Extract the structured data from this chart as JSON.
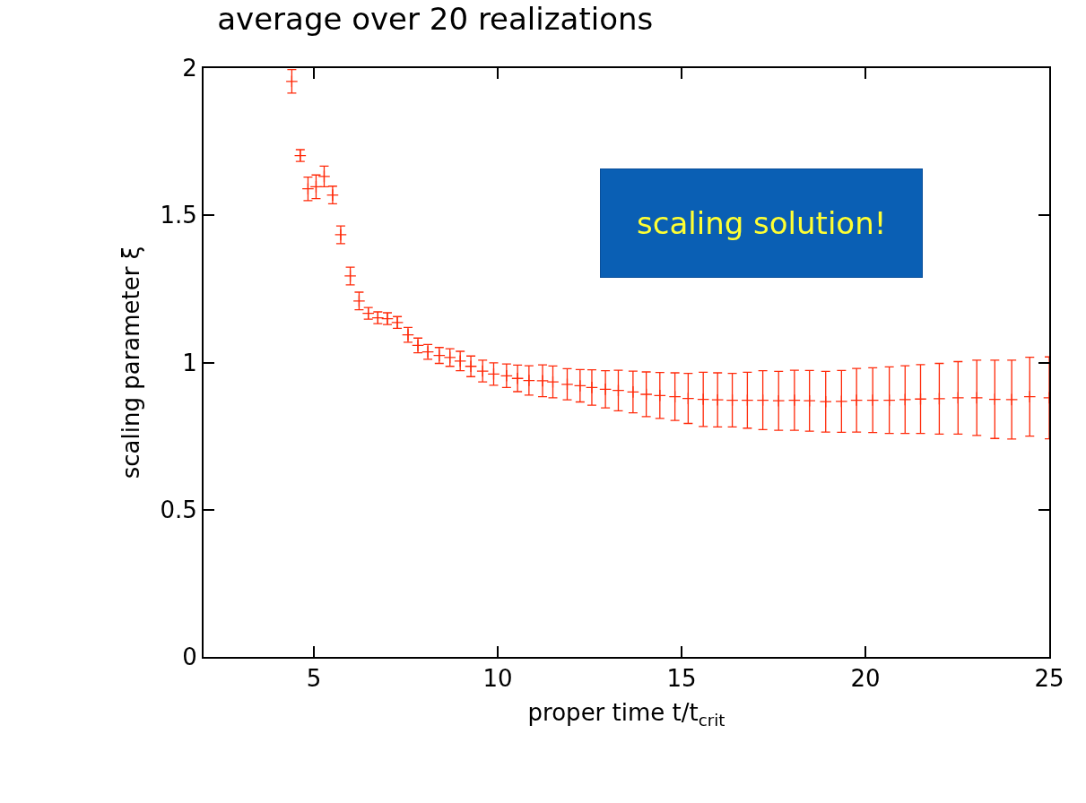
{
  "chart_data": {
    "type": "scatter",
    "title": "average over 20 realizations",
    "xlabel": "proper time t/t$_{crit}$",
    "ylabel": "scaling parameter ξ",
    "annotations": [
      "scaling solution!"
    ],
    "x": [
      4.4,
      4.63,
      4.84,
      5.06,
      5.28,
      5.51,
      5.73,
      5.99,
      6.23,
      6.48,
      6.74,
      7.0,
      7.27,
      7.56,
      7.83,
      8.1,
      8.41,
      8.7,
      8.98,
      9.27,
      9.59,
      9.89,
      10.24,
      10.54,
      10.85,
      11.22,
      11.5,
      11.89,
      12.24,
      12.56,
      12.93,
      13.28,
      13.68,
      14.04,
      14.41,
      14.82,
      15.18,
      15.59,
      15.98,
      16.38,
      16.79,
      17.21,
      17.64,
      18.07,
      18.48,
      18.92,
      19.35,
      19.76,
      20.2,
      20.65,
      21.08,
      21.5,
      22.01,
      22.52,
      23.03,
      23.52,
      23.98,
      24.47,
      25.0
    ],
    "series": [
      {
        "color": "#ff2a0a",
        "values": [
          1.955,
          1.703,
          1.59,
          1.597,
          1.632,
          1.569,
          1.434,
          1.294,
          1.209,
          1.167,
          1.152,
          1.149,
          1.136,
          1.094,
          1.058,
          1.036,
          1.024,
          1.017,
          1.005,
          0.987,
          0.971,
          0.961,
          0.955,
          0.946,
          0.939,
          0.938,
          0.934,
          0.926,
          0.921,
          0.915,
          0.909,
          0.905,
          0.9,
          0.892,
          0.888,
          0.884,
          0.878,
          0.875,
          0.873,
          0.872,
          0.872,
          0.872,
          0.87,
          0.872,
          0.87,
          0.867,
          0.868,
          0.872,
          0.872,
          0.872,
          0.874,
          0.876,
          0.877,
          0.88,
          0.88,
          0.875,
          0.874,
          0.884,
          0.88
        ],
        "errors": [
          0.04,
          0.02,
          0.04,
          0.04,
          0.035,
          0.03,
          0.03,
          0.03,
          0.03,
          0.02,
          0.02,
          0.02,
          0.02,
          0.025,
          0.025,
          0.025,
          0.027,
          0.03,
          0.033,
          0.035,
          0.037,
          0.038,
          0.04,
          0.045,
          0.05,
          0.054,
          0.054,
          0.053,
          0.055,
          0.06,
          0.063,
          0.069,
          0.071,
          0.076,
          0.078,
          0.081,
          0.085,
          0.092,
          0.092,
          0.091,
          0.095,
          0.1,
          0.1,
          0.102,
          0.103,
          0.103,
          0.105,
          0.108,
          0.11,
          0.113,
          0.115,
          0.117,
          0.12,
          0.123,
          0.128,
          0.133,
          0.134,
          0.134,
          0.139
        ]
      }
    ],
    "xlim": [
      2,
      25
    ],
    "xticks": [
      5,
      10,
      15,
      20,
      25
    ],
    "ylim": [
      0,
      2
    ],
    "yticks": [
      0,
      0.5,
      1,
      1.5,
      2
    ],
    "marker": "cross"
  }
}
